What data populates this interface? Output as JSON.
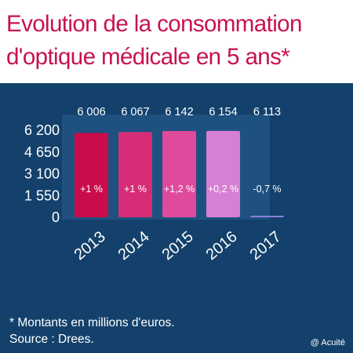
{
  "header": {
    "title_line_1": "Evolution de la consommation",
    "title_line_2": "d'optique médicale en 5 ans*"
  },
  "footer": {
    "footnote": "* Montants en millions d'euros.",
    "source": "Source : Drees.",
    "credit": "@ Acuité"
  },
  "chart_data": {
    "type": "bar",
    "title": "Evolution de la consommation d'optique médicale en 5 ans*",
    "categories": [
      "2013",
      "2014",
      "2015",
      "2016",
      "2017"
    ],
    "values": [
      6006,
      6067,
      6142,
      6154,
      6113
    ],
    "value_labels": [
      "6 006",
      "6 067",
      "6 142",
      "6 154",
      "6 113"
    ],
    "change_labels": [
      "+1 %",
      "+1 %",
      "+1,2 %",
      "+0,2 %",
      "-0,7 %"
    ],
    "y_ticks": [
      0,
      1550,
      3100,
      4650,
      6200
    ],
    "y_tick_labels": [
      "0",
      "1 550",
      "3 100",
      "4 650",
      "6 200"
    ],
    "ylim": [
      0,
      6200
    ],
    "grid": false,
    "bar_colors": [
      "#c90d4a",
      "#d72d78",
      "#e04a9c",
      "#d77fd4",
      "#8a80dc"
    ],
    "panel_color": "#1e5080",
    "background_color": "#13416b",
    "title_color": "#c8114f"
  }
}
